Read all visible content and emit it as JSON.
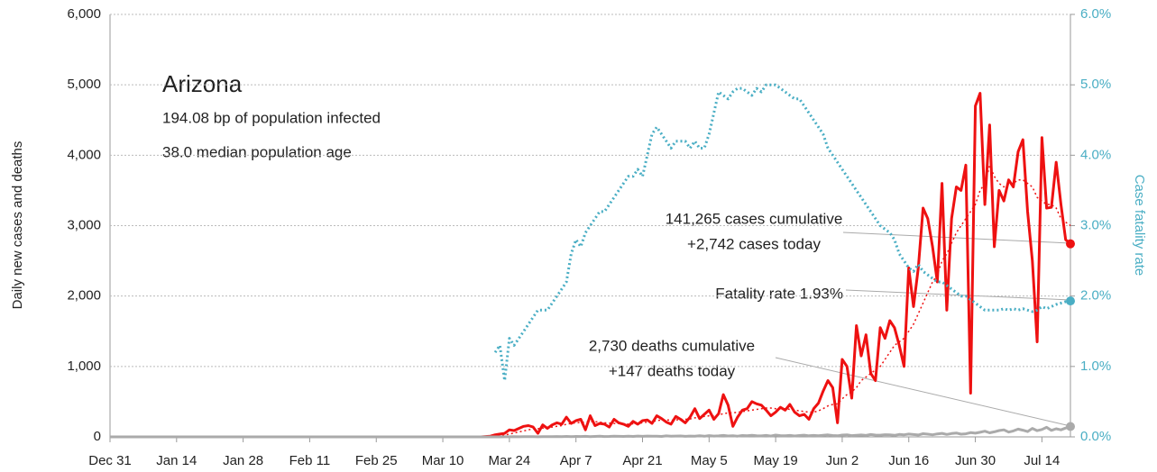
{
  "chart_data": {
    "type": "line",
    "annotations": {
      "title": "Arizona",
      "infected": "194.08 bp of population infected",
      "age": "38.0 median population age",
      "cases_cum": "141,265 cases cumulative",
      "cases_today": "+2,742 cases today",
      "fatality": "Fatality rate 1.93%",
      "deaths_cum": "2,730 deaths cumulative",
      "deaths_today": "+147 deaths today"
    },
    "ylabel": "Daily new cases and deaths",
    "y2label": "Case fatality rate",
    "xlim": [
      "Dec 31",
      "Jul 20"
    ],
    "xticks": [
      "Dec 31",
      "Jan 14",
      "Jan 28",
      "Feb 11",
      "Feb 25",
      "Mar 10",
      "Mar 24",
      "Apr 7",
      "Apr 21",
      "May 5",
      "May 19",
      "Jun 2",
      "Jun 16",
      "Jun 30",
      "Jul 14"
    ],
    "ylim": [
      0,
      6000
    ],
    "yticks": [
      {
        "value": 0,
        "label": "0"
      },
      {
        "value": 1000,
        "label": "1,000"
      },
      {
        "value": 2000,
        "label": "2,000"
      },
      {
        "value": 3000,
        "label": "3,000"
      },
      {
        "value": 4000,
        "label": "4,000"
      },
      {
        "value": 5000,
        "label": "5,000"
      },
      {
        "value": 6000,
        "label": "6,000"
      }
    ],
    "y2lim": [
      0,
      6
    ],
    "y2ticks": [
      {
        "value": 0,
        "label": "0.0%"
      },
      {
        "value": 1,
        "label": "1.0%"
      },
      {
        "value": 2,
        "label": "2.0%"
      },
      {
        "value": 3,
        "label": "3.0%"
      },
      {
        "value": 4,
        "label": "4.0%"
      },
      {
        "value": 5,
        "label": "5.0%"
      },
      {
        "value": 6,
        "label": "6.0%"
      }
    ],
    "grid": true,
    "x": [
      "Dec 31",
      "Mar 18",
      "Mar 19",
      "Mar 20",
      "Mar 21",
      "Mar 22",
      "Mar 23",
      "Mar 24",
      "Mar 25",
      "Mar 26",
      "Mar 27",
      "Mar 28",
      "Mar 29",
      "Mar 30",
      "Mar 31",
      "Apr 1",
      "Apr 2",
      "Apr 3",
      "Apr 4",
      "Apr 5",
      "Apr 6",
      "Apr 7",
      "Apr 8",
      "Apr 9",
      "Apr 10",
      "Apr 11",
      "Apr 12",
      "Apr 13",
      "Apr 14",
      "Apr 15",
      "Apr 16",
      "Apr 17",
      "Apr 18",
      "Apr 19",
      "Apr 20",
      "Apr 21",
      "Apr 22",
      "Apr 23",
      "Apr 24",
      "Apr 25",
      "Apr 26",
      "Apr 27",
      "Apr 28",
      "Apr 29",
      "Apr 30",
      "May 1",
      "May 2",
      "May 3",
      "May 4",
      "May 5",
      "May 6",
      "May 7",
      "May 8",
      "May 9",
      "May 10",
      "May 11",
      "May 12",
      "May 13",
      "May 14",
      "May 15",
      "May 16",
      "May 17",
      "May 18",
      "May 19",
      "May 20",
      "May 21",
      "May 22",
      "May 23",
      "May 24",
      "May 25",
      "May 26",
      "May 27",
      "May 28",
      "May 29",
      "May 30",
      "May 31",
      "Jun 1",
      "Jun 2",
      "Jun 3",
      "Jun 4",
      "Jun 5",
      "Jun 6",
      "Jun 7",
      "Jun 8",
      "Jun 9",
      "Jun 10",
      "Jun 11",
      "Jun 12",
      "Jun 13",
      "Jun 14",
      "Jun 15",
      "Jun 16",
      "Jun 17",
      "Jun 18",
      "Jun 19",
      "Jun 20",
      "Jun 21",
      "Jun 22",
      "Jun 23",
      "Jun 24",
      "Jun 25",
      "Jun 26",
      "Jun 27",
      "Jun 28",
      "Jun 29",
      "Jun 30",
      "Jul 1",
      "Jul 2",
      "Jul 3",
      "Jul 4",
      "Jul 5",
      "Jul 6",
      "Jul 7",
      "Jul 8",
      "Jul 9",
      "Jul 10",
      "Jul 11",
      "Jul 12",
      "Jul 13",
      "Jul 14",
      "Jul 15",
      "Jul 16",
      "Jul 17",
      "Jul 18",
      "Jul 19",
      "Jul 20"
    ],
    "series": [
      {
        "color": "#ee1111",
        "dash": "solid",
        "width": 3,
        "end_dot": true,
        "values": [
          0,
          0,
          5,
          10,
          30,
          40,
          50,
          100,
          90,
          120,
          150,
          160,
          140,
          50,
          170,
          120,
          170,
          200,
          180,
          280,
          190,
          230,
          250,
          100,
          300,
          160,
          190,
          180,
          140,
          250,
          200,
          180,
          150,
          220,
          180,
          230,
          240,
          190,
          300,
          260,
          210,
          180,
          290,
          250,
          200,
          280,
          400,
          260,
          320,
          380,
          250,
          330,
          600,
          450,
          150,
          280,
          380,
          400,
          500,
          470,
          450,
          380,
          300,
          350,
          420,
          380,
          460,
          350,
          300,
          320,
          250,
          400,
          480,
          650,
          800,
          700,
          200,
          1100,
          1000,
          550,
          1580,
          1150,
          1450,
          900,
          800,
          1550,
          1400,
          1650,
          1550,
          1300,
          1000,
          2400,
          1850,
          2400,
          3250,
          3100,
          2700,
          2200,
          3600,
          1800,
          3100,
          3550,
          3500,
          3860,
          620,
          4700,
          4880,
          3300,
          4430,
          2700,
          3500,
          3350,
          3650,
          3550,
          4050,
          4220,
          3200,
          2500,
          1350,
          4250,
          3250,
          3260,
          3900,
          3300,
          2800,
          2742
        ]
      },
      {
        "color": "#ee1111",
        "dash": "dotted",
        "width": 1.5,
        "end_dot": false,
        "values": [
          0,
          0,
          2,
          5,
          10,
          18,
          25,
          40,
          55,
          70,
          85,
          100,
          115,
          115,
          125,
          135,
          140,
          150,
          160,
          180,
          190,
          200,
          205,
          210,
          220,
          215,
          210,
          200,
          195,
          190,
          190,
          185,
          180,
          185,
          190,
          200,
          210,
          215,
          230,
          240,
          240,
          235,
          240,
          245,
          250,
          255,
          270,
          280,
          290,
          300,
          300,
          310,
          330,
          340,
          340,
          350,
          360,
          370,
          380,
          390,
          400,
          410,
          410,
          400,
          400,
          400,
          390,
          380,
          370,
          360,
          350,
          350,
          370,
          400,
          440,
          460,
          470,
          540,
          600,
          640,
          700,
          800,
          850,
          900,
          950,
          1000,
          1100,
          1200,
          1300,
          1350,
          1400,
          1500,
          1600,
          1750,
          1900,
          2050,
          2200,
          2300,
          2500,
          2600,
          2750,
          2900,
          3000,
          3100,
          3200,
          3300,
          3500,
          3600,
          3850,
          3700,
          3600,
          3550,
          3600,
          3600,
          3650,
          3650,
          3600,
          3550,
          3400,
          3350,
          3300,
          3300,
          3250,
          3100,
          3050,
          3000
        ]
      },
      {
        "color": "#aaaaaa",
        "dash": "solid",
        "width": 3,
        "end_dot": true,
        "values": [
          0,
          0,
          0,
          0,
          0,
          0,
          1,
          1,
          2,
          1,
          2,
          3,
          2,
          1,
          3,
          2,
          3,
          5,
          4,
          6,
          3,
          7,
          5,
          8,
          4,
          6,
          9,
          5,
          7,
          10,
          8,
          6,
          9,
          7,
          11,
          8,
          12,
          9,
          10,
          7,
          14,
          9,
          11,
          13,
          8,
          12,
          10,
          15,
          9,
          18,
          11,
          14,
          20,
          13,
          16,
          10,
          19,
          15,
          22,
          17,
          14,
          20,
          12,
          25,
          18,
          16,
          21,
          13,
          19,
          24,
          15,
          20,
          17,
          23,
          28,
          19,
          15,
          25,
          30,
          18,
          22,
          27,
          20,
          33,
          26,
          24,
          31,
          28,
          22,
          35,
          29,
          40,
          33,
          27,
          45,
          38,
          30,
          42,
          50,
          35,
          47,
          55,
          39,
          44,
          60,
          52,
          65,
          80,
          58,
          72,
          90,
          100,
          68,
          85,
          110,
          95,
          75,
          120,
          88,
          105,
          135,
          92,
          115,
          100,
          125,
          147
        ]
      },
      {
        "color": "#4aaec4",
        "dash": "dotted",
        "width": 3,
        "end_dot": true,
        "axis": "y2",
        "values": [
          null,
          null,
          null,
          null,
          1.2,
          1.3,
          0.8,
          1.4,
          1.3,
          1.4,
          1.5,
          1.6,
          1.7,
          1.8,
          1.8,
          1.8,
          1.9,
          2.0,
          2.1,
          2.2,
          2.6,
          2.8,
          2.7,
          2.9,
          3.0,
          3.1,
          3.2,
          3.2,
          3.3,
          3.4,
          3.5,
          3.6,
          3.7,
          3.7,
          3.8,
          3.7,
          4.0,
          4.3,
          4.4,
          4.3,
          4.2,
          4.1,
          4.2,
          4.2,
          4.2,
          4.1,
          4.2,
          4.1,
          4.1,
          4.3,
          4.6,
          4.9,
          4.85,
          4.8,
          4.9,
          4.95,
          4.95,
          4.9,
          4.85,
          4.95,
          4.9,
          5.0,
          5.0,
          5.0,
          4.95,
          4.9,
          4.85,
          4.8,
          4.8,
          4.7,
          4.6,
          4.5,
          4.4,
          4.3,
          4.1,
          4.0,
          3.9,
          3.8,
          3.7,
          3.6,
          3.5,
          3.4,
          3.3,
          3.2,
          3.1,
          3.0,
          2.95,
          2.9,
          2.8,
          2.6,
          2.5,
          2.4,
          2.35,
          2.45,
          2.35,
          2.3,
          2.25,
          2.2,
          2.2,
          2.15,
          2.1,
          2.05,
          2.0,
          2.0,
          1.95,
          1.9,
          1.85,
          1.8,
          1.8,
          1.8,
          1.8,
          1.82,
          1.8,
          1.82,
          1.8,
          1.82,
          1.8,
          1.78,
          1.8,
          1.85,
          1.82,
          1.85,
          1.88,
          1.9,
          1.92,
          1.93
        ]
      }
    ]
  }
}
